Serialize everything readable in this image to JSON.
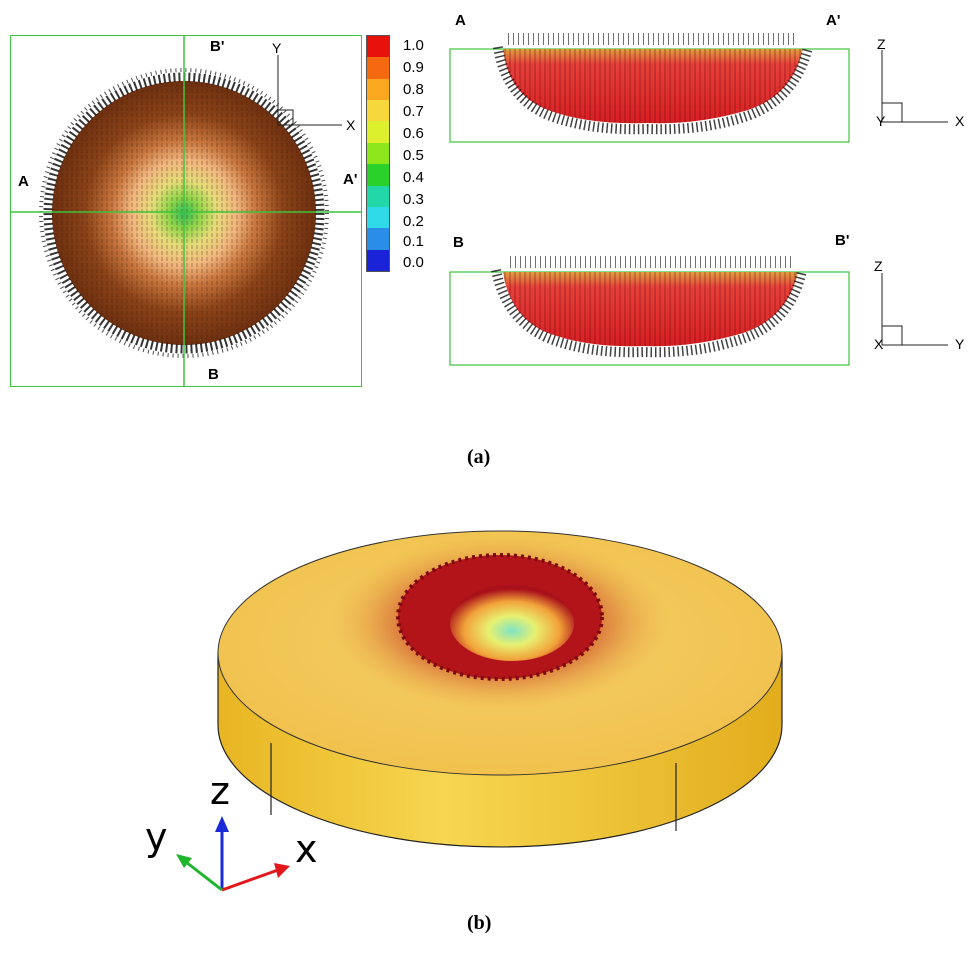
{
  "panel_a": {
    "caption": "(a)",
    "top_view": {
      "section_labels": {
        "left": "A",
        "right": "A'",
        "top": "B'",
        "bottom": "B"
      },
      "axis_labels": {
        "vertical": "Y",
        "horizontal": "X"
      }
    },
    "colorbar": {
      "ticks": [
        "1.0",
        "0.9",
        "0.8",
        "0.7",
        "0.6",
        "0.5",
        "0.4",
        "0.3",
        "0.2",
        "0.1",
        "0.0"
      ],
      "colors": [
        "#e8120c",
        "#f56a10",
        "#f9a820",
        "#f6d73c",
        "#dcf02e",
        "#8ee61c",
        "#2bd12b",
        "#22d7a8",
        "#2fd9e8",
        "#2a8de8",
        "#1a23d8"
      ]
    },
    "section_aa": {
      "left_label": "A",
      "right_label": "A'",
      "axis_labels": {
        "vertical": "Z",
        "horizontal": "X",
        "out_of_plane": "Y"
      }
    },
    "section_bb": {
      "left_label": "B",
      "right_label": "B'",
      "axis_labels": {
        "vertical": "Z",
        "horizontal": "Y",
        "out_of_plane": "X"
      }
    }
  },
  "panel_b": {
    "caption": "(b)",
    "axis_triad": {
      "z": "z",
      "y": "y",
      "x": "x"
    },
    "colors": {
      "disk": "#f2c23a",
      "disk_side": "#e8b722",
      "crater_rim": "#b4141a",
      "crater_center": "#7fe3c5"
    }
  }
}
